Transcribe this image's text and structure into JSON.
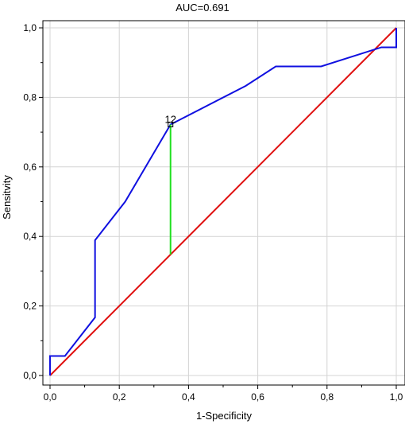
{
  "chart_data": {
    "type": "line",
    "title": "AUC=0.691",
    "xlabel": "1-Specificity",
    "ylabel": "Sensitvity",
    "xlim": [
      0,
      1
    ],
    "ylim": [
      0,
      1
    ],
    "x_ticks": [
      {
        "value": 0.0,
        "label": "0,0"
      },
      {
        "value": 0.2,
        "label": "0,2"
      },
      {
        "value": 0.4,
        "label": "0,4"
      },
      {
        "value": 0.6,
        "label": "0,6"
      },
      {
        "value": 0.8,
        "label": "0,8"
      },
      {
        "value": 1.0,
        "label": "1,0"
      }
    ],
    "y_ticks": [
      {
        "value": 0.0,
        "label": "0,0"
      },
      {
        "value": 0.2,
        "label": "0,2"
      },
      {
        "value": 0.4,
        "label": "0,4"
      },
      {
        "value": 0.6,
        "label": "0,6"
      },
      {
        "value": 0.8,
        "label": "0,8"
      },
      {
        "value": 1.0,
        "label": "1,0"
      }
    ],
    "grid": true,
    "series": [
      {
        "color": "#1010e0",
        "role": "roc-curve",
        "x": [
          0.0,
          0.0,
          0.043,
          0.043,
          0.13,
          0.13,
          0.217,
          0.348,
          0.565,
          0.652,
          0.783,
          0.957,
          0.957,
          1.0,
          1.0
        ],
        "y": [
          0.0,
          0.056,
          0.056,
          0.056,
          0.167,
          0.389,
          0.5,
          0.722,
          0.833,
          0.889,
          0.889,
          0.944,
          0.944,
          0.944,
          1.0
        ]
      },
      {
        "color": "#e01010",
        "role": "reference-diagonal",
        "x": [
          0,
          1
        ],
        "y": [
          0,
          1
        ]
      }
    ],
    "cutoff": {
      "label": "12",
      "x": 0.348,
      "y_top": 0.722,
      "y_bottom": 0.348,
      "color": "#20e020"
    }
  }
}
